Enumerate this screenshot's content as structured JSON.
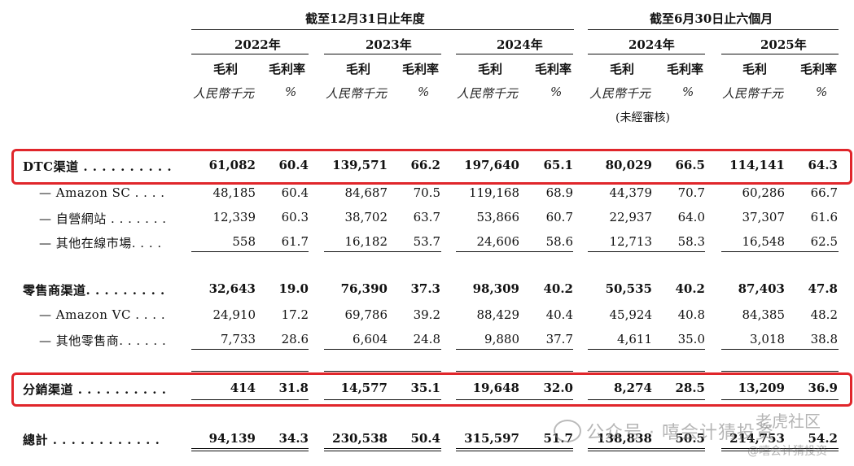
{
  "header": {
    "group_annual": "截至12月31日止年度",
    "group_half": "截至6月30日止六個月",
    "years": [
      "2022年",
      "2023年",
      "2024年",
      "2024年",
      "2025年"
    ],
    "col_profit": "毛利",
    "col_margin": "毛利率",
    "unit_rmb": "人民幣千元",
    "unit_pct": "%",
    "unaudited": "(未經審核)"
  },
  "rows": [
    {
      "label": "DTC渠道 . . . . . . . . . .",
      "bold": true,
      "values": [
        "61,082",
        "60.4",
        "139,571",
        "66.2",
        "197,640",
        "65.1",
        "80,029",
        "66.5",
        "114,141",
        "64.3"
      ]
    },
    {
      "label": "— Amazon SC . . . .",
      "bold": false,
      "values": [
        "48,185",
        "60.4",
        "84,687",
        "70.5",
        "119,168",
        "68.9",
        "44,379",
        "70.7",
        "60,286",
        "66.7"
      ]
    },
    {
      "label": "— 自營網站 . . . . . . .",
      "bold": false,
      "values": [
        "12,339",
        "60.3",
        "38,702",
        "63.7",
        "53,866",
        "60.7",
        "22,937",
        "64.0",
        "37,307",
        "61.6"
      ]
    },
    {
      "label": "— 其他在線市場. . . .",
      "bold": false,
      "values": [
        "558",
        "61.7",
        "16,182",
        "53.7",
        "24,606",
        "58.6",
        "12,713",
        "58.3",
        "16,548",
        "62.5"
      ]
    },
    {
      "label": "零售商渠道. . . . . . . . .",
      "bold": true,
      "values": [
        "32,643",
        "19.0",
        "76,390",
        "37.3",
        "98,309",
        "40.2",
        "50,535",
        "40.2",
        "87,403",
        "47.8"
      ]
    },
    {
      "label": "— Amazon VC . . . .",
      "bold": false,
      "values": [
        "24,910",
        "17.2",
        "69,786",
        "39.2",
        "88,429",
        "40.4",
        "45,924",
        "40.8",
        "84,385",
        "48.2"
      ]
    },
    {
      "label": "— 其他零售商. . . . . .",
      "bold": false,
      "values": [
        "7,733",
        "28.6",
        "6,604",
        "24.8",
        "9,880",
        "37.7",
        "4,611",
        "35.0",
        "3,018",
        "38.8"
      ]
    },
    {
      "label": "分銷渠道 . . . . . . . . . .",
      "bold": true,
      "values": [
        "414",
        "31.8",
        "14,577",
        "35.1",
        "19,648",
        "32.0",
        "8,274",
        "28.5",
        "13,209",
        "36.9"
      ]
    },
    {
      "label": "總計 . . . . . . . . . . . .",
      "bold": true,
      "values": [
        "94,139",
        "34.3",
        "230,538",
        "50.4",
        "315,597",
        "51.7",
        "138,838",
        "50.5",
        "214,753",
        "54.2"
      ]
    }
  ],
  "watermark": {
    "main": "公众号 · 嘻会计猜投资",
    "corner_top": "老虎社区",
    "corner_bottom": "@嘻会计猜投资"
  }
}
